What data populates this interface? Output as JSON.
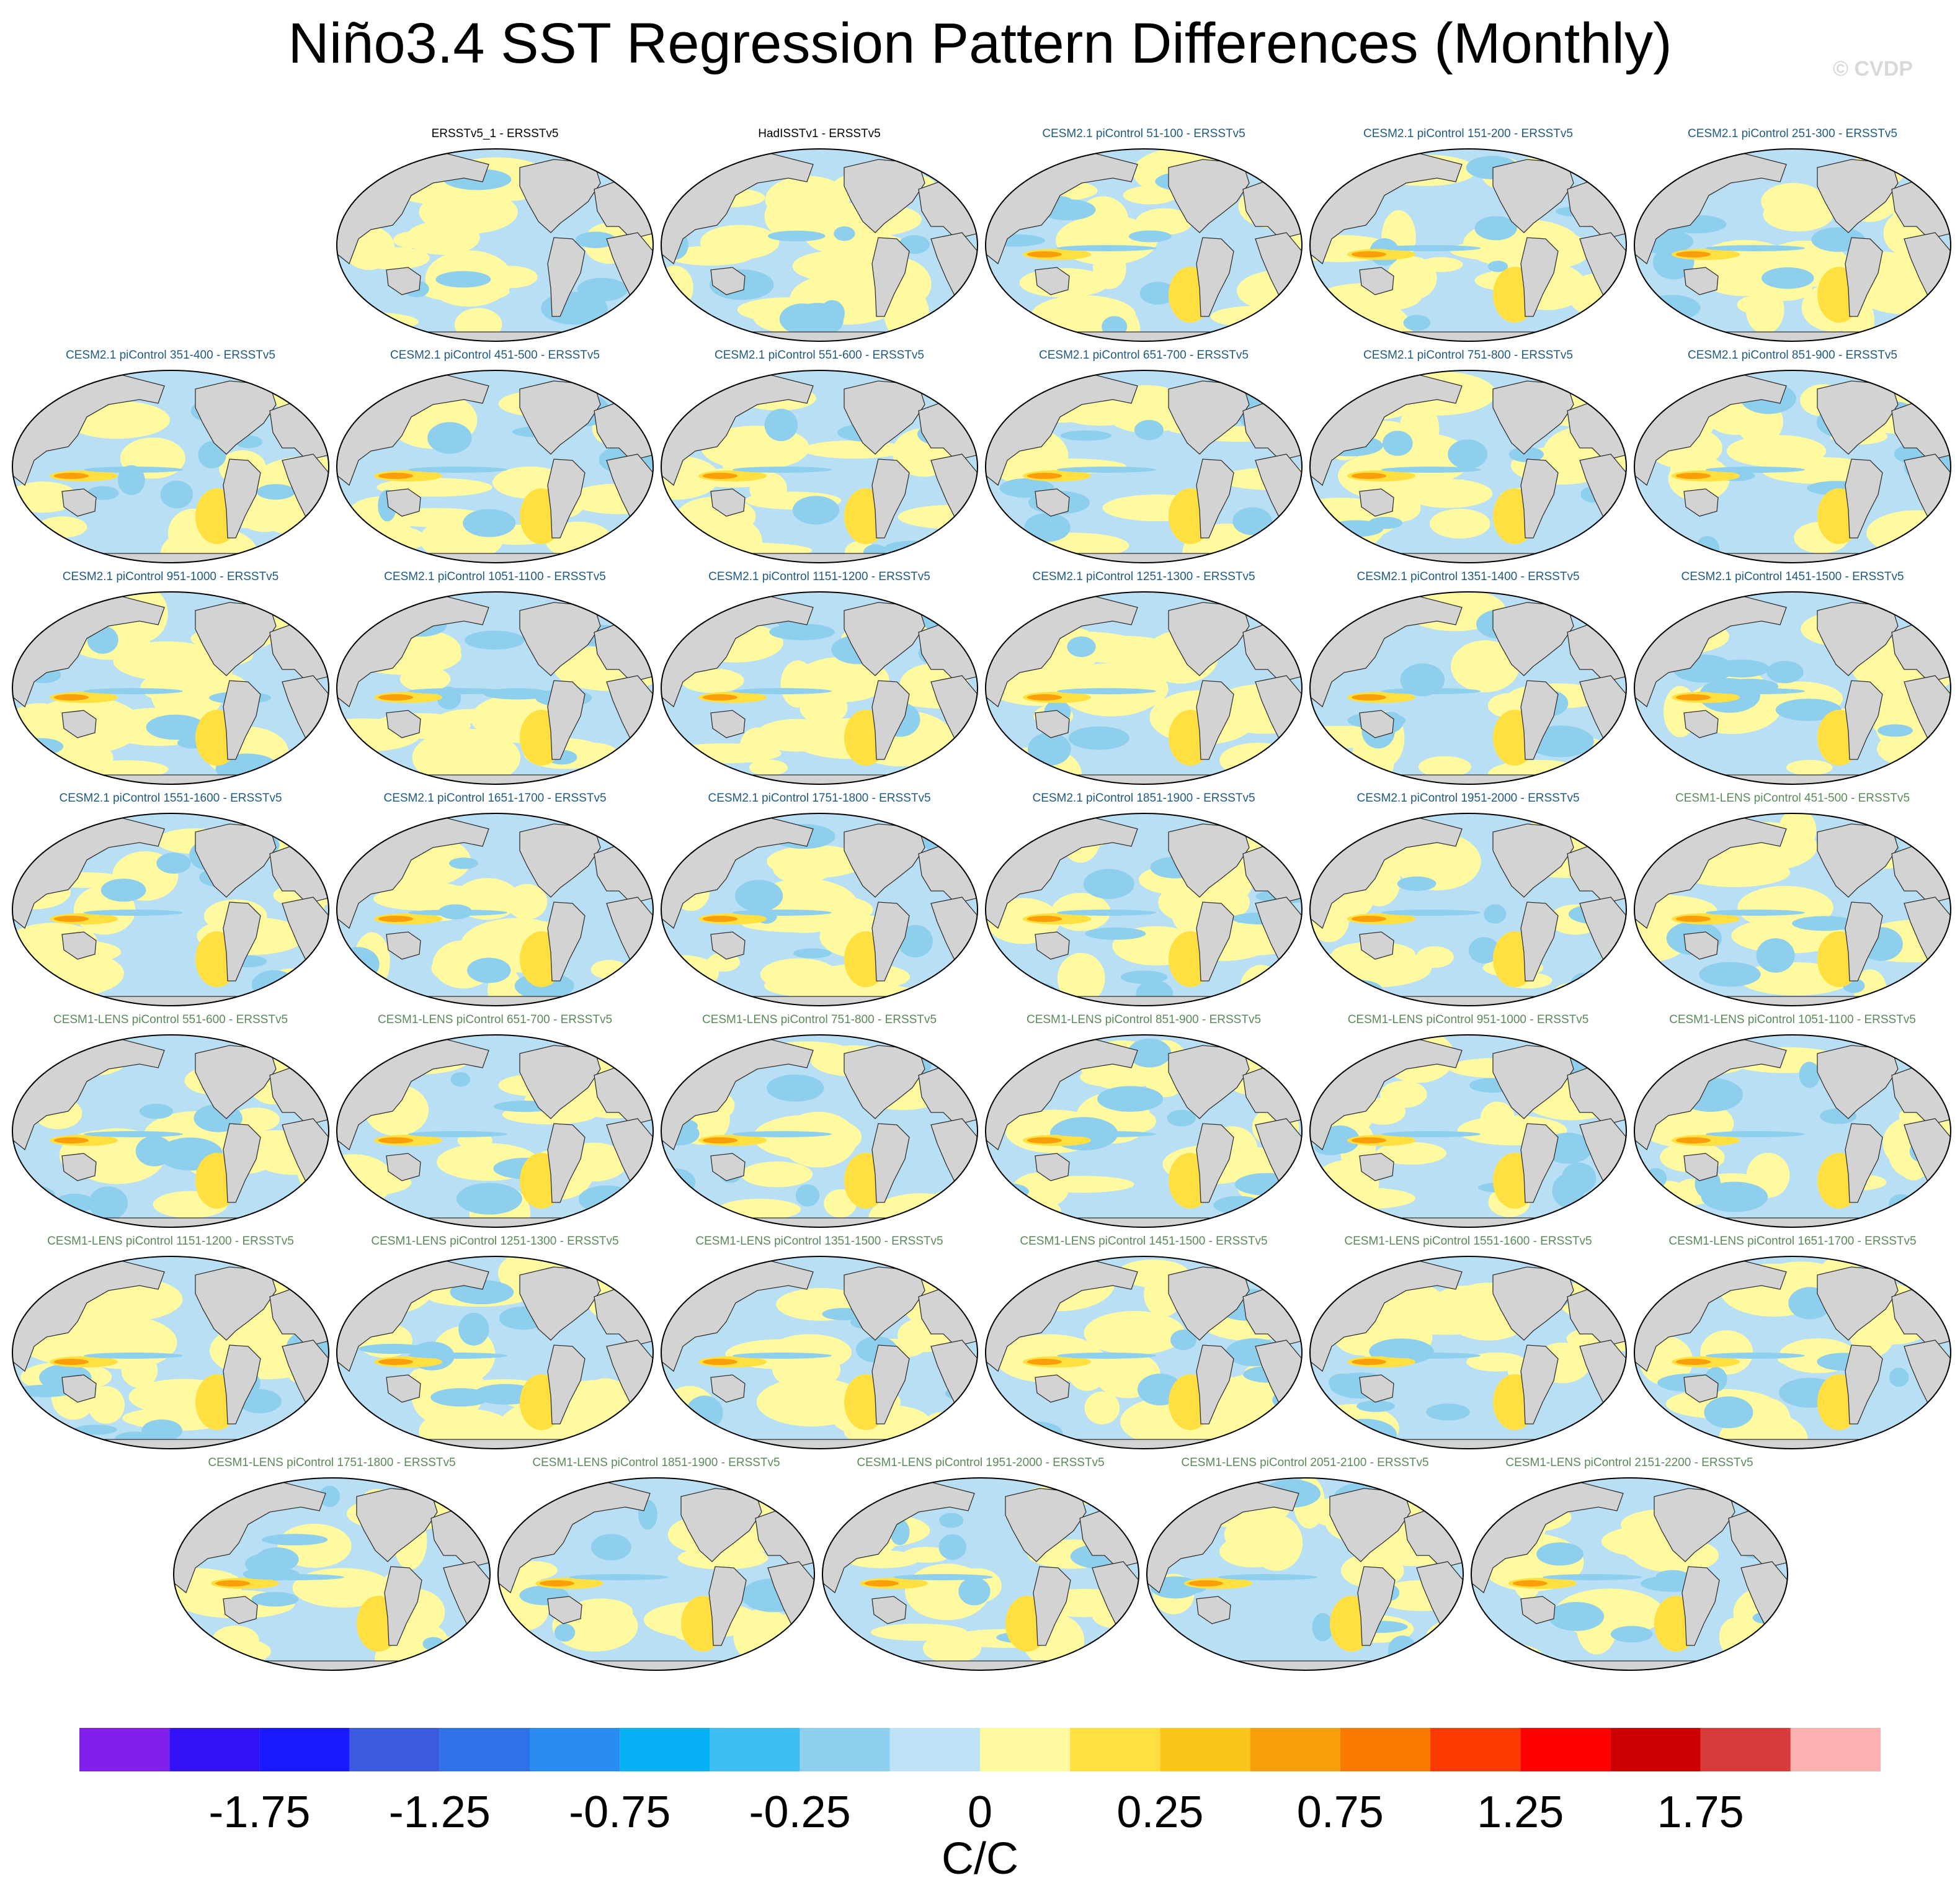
{
  "title": "Niño3.4 SST Regression Pattern Differences (Monthly)",
  "watermark": "© CVDP",
  "chart_data": {
    "type": "map-panels",
    "variable": "Niño3.4 SST regression pattern differences",
    "units": "C/C",
    "colors": {
      "title_obs": "#000000",
      "title_cesm2": "#1f5a82",
      "title_cesm1": "#5a8a5a",
      "land": "#d3d3d3",
      "coast": "#333333",
      "ocean_neg": "#b9dff5",
      "ocean_pos": "#fffaa0"
    },
    "panels": [
      {
        "title": "ERSSTv5_1 - ERSSTv5",
        "group": "obs"
      },
      {
        "title": "HadISSTv1 - ERSSTv5",
        "group": "obs"
      },
      {
        "title": "CESM2.1 piControl 51-100 - ERSSTv5",
        "group": "cesm2"
      },
      {
        "title": "CESM2.1 piControl 151-200 - ERSSTv5",
        "group": "cesm2"
      },
      {
        "title": "CESM2.1 piControl 251-300 - ERSSTv5",
        "group": "cesm2"
      },
      {
        "title": "CESM2.1 piControl 351-400 - ERSSTv5",
        "group": "cesm2"
      },
      {
        "title": "CESM2.1 piControl 451-500 - ERSSTv5",
        "group": "cesm2"
      },
      {
        "title": "CESM2.1 piControl 551-600 - ERSSTv5",
        "group": "cesm2"
      },
      {
        "title": "CESM2.1 piControl 651-700 - ERSSTv5",
        "group": "cesm2"
      },
      {
        "title": "CESM2.1 piControl 751-800 - ERSSTv5",
        "group": "cesm2"
      },
      {
        "title": "CESM2.1 piControl 851-900 - ERSSTv5",
        "group": "cesm2"
      },
      {
        "title": "CESM2.1 piControl 951-1000 - ERSSTv5",
        "group": "cesm2"
      },
      {
        "title": "CESM2.1 piControl 1051-1100 - ERSSTv5",
        "group": "cesm2"
      },
      {
        "title": "CESM2.1 piControl 1151-1200 - ERSSTv5",
        "group": "cesm2"
      },
      {
        "title": "CESM2.1 piControl 1251-1300 - ERSSTv5",
        "group": "cesm2"
      },
      {
        "title": "CESM2.1 piControl 1351-1400 - ERSSTv5",
        "group": "cesm2"
      },
      {
        "title": "CESM2.1 piControl 1451-1500 - ERSSTv5",
        "group": "cesm2"
      },
      {
        "title": "CESM2.1 piControl 1551-1600 - ERSSTv5",
        "group": "cesm2"
      },
      {
        "title": "CESM2.1 piControl 1651-1700 - ERSSTv5",
        "group": "cesm2"
      },
      {
        "title": "CESM2.1 piControl 1751-1800 - ERSSTv5",
        "group": "cesm2"
      },
      {
        "title": "CESM2.1 piControl 1851-1900 - ERSSTv5",
        "group": "cesm2"
      },
      {
        "title": "CESM2.1 piControl 1951-2000 - ERSSTv5",
        "group": "cesm2"
      },
      {
        "title": "CESM1-LENS piControl 451-500 - ERSSTv5",
        "group": "cesm1"
      },
      {
        "title": "CESM1-LENS piControl 551-600 - ERSSTv5",
        "group": "cesm1"
      },
      {
        "title": "CESM1-LENS piControl 651-700 - ERSSTv5",
        "group": "cesm1"
      },
      {
        "title": "CESM1-LENS piControl 751-800 - ERSSTv5",
        "group": "cesm1"
      },
      {
        "title": "CESM1-LENS piControl 851-900 - ERSSTv5",
        "group": "cesm1"
      },
      {
        "title": "CESM1-LENS piControl 951-1000 - ERSSTv5",
        "group": "cesm1"
      },
      {
        "title": "CESM1-LENS piControl 1051-1100 - ERSSTv5",
        "group": "cesm1"
      },
      {
        "title": "CESM1-LENS piControl 1151-1200 - ERSSTv5",
        "group": "cesm1"
      },
      {
        "title": "CESM1-LENS piControl 1251-1300 - ERSSTv5",
        "group": "cesm1"
      },
      {
        "title": "CESM1-LENS piControl 1351-1500 - ERSSTv5",
        "group": "cesm1"
      },
      {
        "title": "CESM1-LENS piControl 1451-1500 - ERSSTv5",
        "group": "cesm1"
      },
      {
        "title": "CESM1-LENS piControl 1551-1600 - ERSSTv5",
        "group": "cesm1"
      },
      {
        "title": "CESM1-LENS piControl 1651-1700 - ERSSTv5",
        "group": "cesm1"
      },
      {
        "title": "CESM1-LENS piControl 1751-1800 - ERSSTv5",
        "group": "cesm1"
      },
      {
        "title": "CESM1-LENS piControl 1851-1900 - ERSSTv5",
        "group": "cesm1"
      },
      {
        "title": "CESM1-LENS piControl 1951-2000 - ERSSTv5",
        "group": "cesm1"
      },
      {
        "title": "CESM1-LENS piControl 2051-2100 - ERSSTv5",
        "group": "cesm1"
      },
      {
        "title": "CESM1-LENS piControl 2151-2200 - ERSSTv5",
        "group": "cesm1"
      }
    ],
    "colorbar": {
      "levels": [
        -2,
        -1.75,
        -1.5,
        -1.25,
        -1,
        -0.75,
        -0.5,
        -0.25,
        -0.1,
        0,
        0.1,
        0.25,
        0.5,
        0.75,
        1,
        1.25,
        1.5,
        1.75,
        2
      ],
      "colors": [
        "#7f1fe9",
        "#3311f5",
        "#1a1aff",
        "#3c5ae0",
        "#2f72e8",
        "#2a8cf0",
        "#05b0f5",
        "#3ebef2",
        "#8fcfee",
        "#bde2f5",
        "#fffaa0",
        "#ffe040",
        "#fbc51b",
        "#fa9e0a",
        "#fa7a00",
        "#fa3a00",
        "#ff0000",
        "#cc0000",
        "#d93a3a",
        "#ffb0b0"
      ],
      "tick_labels": [
        "-1.75",
        "-1.25",
        "-0.75",
        "-0.25",
        "0",
        "0.25",
        "0.75",
        "1.25",
        "1.75"
      ],
      "units": "C/C"
    }
  }
}
